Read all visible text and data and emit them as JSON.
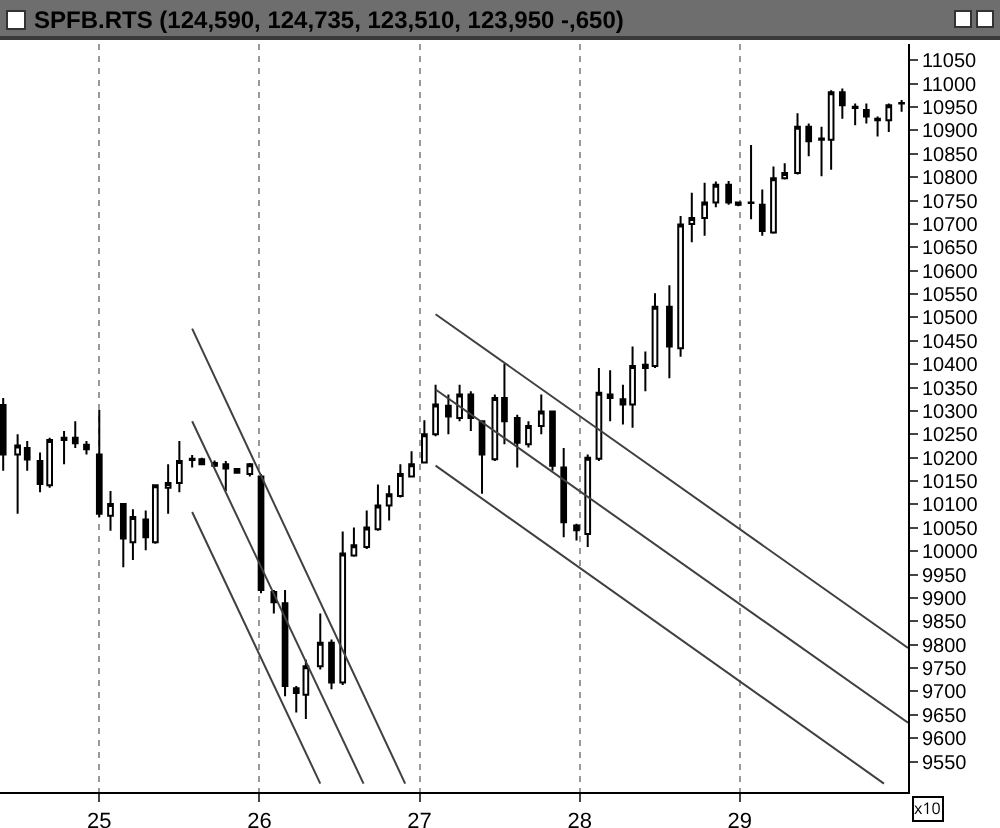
{
  "chart_data": {
    "type": "candlestick",
    "title": "SPFB.RTS (124,590, 124,735, 123,510, 123,950 -,650)",
    "x": [
      24.4,
      24.49,
      24.55,
      24.63,
      24.69,
      24.78,
      24.85,
      24.92,
      25.0,
      25.07,
      25.15,
      25.21,
      25.29,
      25.35,
      25.43,
      25.5,
      25.58,
      25.64,
      25.72,
      25.79,
      25.86,
      25.94,
      26.01,
      26.09,
      26.16,
      26.23,
      26.29,
      26.38,
      26.45,
      26.52,
      26.59,
      26.67,
      26.74,
      26.81,
      26.88,
      26.95,
      27.03,
      27.1,
      27.18,
      27.25,
      27.32,
      27.39,
      27.47,
      27.53,
      27.61,
      27.68,
      27.76,
      27.83,
      27.9,
      27.98,
      28.05,
      28.12,
      28.19,
      28.27,
      28.33,
      28.41,
      28.47,
      28.56,
      28.63,
      28.7,
      28.78,
      28.85,
      28.93,
      28.99,
      29.07,
      29.14,
      29.21,
      29.28,
      29.36,
      29.43,
      29.51,
      29.57,
      29.64,
      29.72,
      29.79,
      29.86,
      29.93,
      30.01
    ],
    "ohlc": [
      [
        10313,
        10328,
        10172,
        10207
      ],
      [
        10207,
        10250,
        10080,
        10226
      ],
      [
        10221,
        10236,
        10172,
        10196
      ],
      [
        10193,
        10211,
        10126,
        10144
      ],
      [
        10141,
        10243,
        10136,
        10238
      ],
      [
        10238,
        10257,
        10186,
        10243
      ],
      [
        10243,
        10278,
        10221,
        10231
      ],
      [
        10228,
        10236,
        10207,
        10218
      ],
      [
        10207,
        10302,
        10073,
        10080
      ],
      [
        10076,
        10129,
        10044,
        10101
      ],
      [
        10101,
        10101,
        9966,
        10027
      ],
      [
        10019,
        10090,
        9981,
        10073
      ],
      [
        10068,
        10087,
        10002,
        10030
      ],
      [
        10019,
        10141,
        10016,
        10141
      ],
      [
        10136,
        10186,
        10080,
        10146
      ],
      [
        10146,
        10236,
        10126,
        10193
      ],
      [
        10195,
        10206,
        10179,
        10198
      ],
      [
        10197,
        10200,
        10186,
        10186
      ],
      [
        10189,
        10194,
        10180,
        10183
      ],
      [
        10186,
        10193,
        10129,
        10177
      ],
      [
        10176,
        10177,
        10166,
        10168
      ],
      [
        10165,
        10189,
        10160,
        10186
      ],
      [
        10160,
        10165,
        9910,
        9917
      ],
      [
        9913,
        9917,
        9867,
        9891
      ],
      [
        9889,
        9917,
        9690,
        9712
      ],
      [
        9707,
        9712,
        9655,
        9697
      ],
      [
        9693,
        9768,
        9641,
        9754
      ],
      [
        9754,
        9867,
        9747,
        9804
      ],
      [
        9804,
        9811,
        9705,
        9719
      ],
      [
        9719,
        10042,
        9714,
        9995
      ],
      [
        9991,
        10051,
        9988,
        10013
      ],
      [
        10009,
        10087,
        10005,
        10051
      ],
      [
        10047,
        10143,
        10044,
        10098
      ],
      [
        10098,
        10141,
        10066,
        10122
      ],
      [
        10118,
        10186,
        10115,
        10165
      ],
      [
        10160,
        10214,
        10158,
        10186
      ],
      [
        10190,
        10280,
        10189,
        10250
      ],
      [
        10250,
        10356,
        10246,
        10314
      ],
      [
        10311,
        10335,
        10250,
        10288
      ],
      [
        10285,
        10356,
        10278,
        10335
      ],
      [
        10335,
        10342,
        10257,
        10285
      ],
      [
        10278,
        10278,
        10123,
        10207
      ],
      [
        10197,
        10335,
        10193,
        10328
      ],
      [
        10328,
        10401,
        10229,
        10278
      ],
      [
        10285,
        10292,
        10179,
        10232
      ],
      [
        10229,
        10278,
        10222,
        10268
      ],
      [
        10268,
        10335,
        10250,
        10299
      ],
      [
        10299,
        10299,
        10172,
        10183
      ],
      [
        10179,
        10221,
        10030,
        10062
      ],
      [
        10055,
        10059,
        10023,
        10045
      ],
      [
        10037,
        10207,
        10009,
        10200
      ],
      [
        10198,
        10392,
        10193,
        10339
      ],
      [
        10335,
        10387,
        10278,
        10328
      ],
      [
        10325,
        10356,
        10271,
        10314
      ],
      [
        10314,
        10438,
        10264,
        10396
      ],
      [
        10392,
        10427,
        10342,
        10399
      ],
      [
        10396,
        10552,
        10392,
        10523
      ],
      [
        10523,
        10569,
        10370,
        10438
      ],
      [
        10434,
        10717,
        10416,
        10699
      ],
      [
        10700,
        10767,
        10661,
        10713
      ],
      [
        10713,
        10788,
        10675,
        10746
      ],
      [
        10746,
        10791,
        10736,
        10784
      ],
      [
        10784,
        10792,
        10741,
        10746
      ],
      [
        10746,
        10746,
        10738,
        10741
      ],
      [
        10745,
        10869,
        10710,
        10746
      ],
      [
        10741,
        10774,
        10675,
        10685
      ],
      [
        10682,
        10823,
        10679,
        10798
      ],
      [
        10798,
        10830,
        10795,
        10809
      ],
      [
        10809,
        10937,
        10806,
        10908
      ],
      [
        10908,
        10915,
        10845,
        10877
      ],
      [
        10883,
        10908,
        10802,
        10880
      ],
      [
        10880,
        10986,
        10816,
        10982
      ],
      [
        10982,
        10990,
        10925,
        10954
      ],
      [
        10951,
        10958,
        10911,
        10948
      ],
      [
        10944,
        10958,
        10915,
        10930
      ],
      [
        10925,
        10930,
        10887,
        10922
      ],
      [
        10922,
        10958,
        10897,
        10954
      ],
      [
        10958,
        10965,
        10940,
        10959
      ]
    ],
    "series": [
      {
        "type": "line",
        "color": "#404040",
        "x": [
          25.58,
          26.91
        ],
        "values": [
          10476,
          9503
        ]
      },
      {
        "type": "line",
        "color": "#404040",
        "x": [
          25.58,
          26.65
        ],
        "values": [
          10278,
          9503
        ]
      },
      {
        "type": "line",
        "color": "#404040",
        "x": [
          25.58,
          26.38
        ],
        "values": [
          10084,
          9503
        ]
      },
      {
        "type": "line",
        "color": "#404040",
        "x": [
          27.1,
          30.05
        ],
        "values": [
          10507,
          9793
        ]
      },
      {
        "type": "line",
        "color": "#404040",
        "x": [
          27.1,
          30.05
        ],
        "values": [
          10346,
          9633
        ]
      },
      {
        "type": "line",
        "color": "#404040",
        "x": [
          27.1,
          29.9
        ],
        "values": [
          10183,
          9503
        ]
      }
    ],
    "xlim": [
      24.38,
      30.05
    ],
    "xticks": [
      25,
      26,
      27,
      28,
      29
    ],
    "ylim": [
      9485,
      11085
    ],
    "yticks": [
      9550,
      9600,
      9650,
      9700,
      9750,
      9800,
      9850,
      9900,
      9950,
      10000,
      10050,
      10100,
      10150,
      10200,
      10250,
      10300,
      10350,
      10400,
      10450,
      10500,
      10550,
      10600,
      10650,
      10700,
      10750,
      10800,
      10850,
      10900,
      10950,
      11000,
      11050
    ],
    "grid": "x",
    "annotations": [
      "x10"
    ]
  }
}
